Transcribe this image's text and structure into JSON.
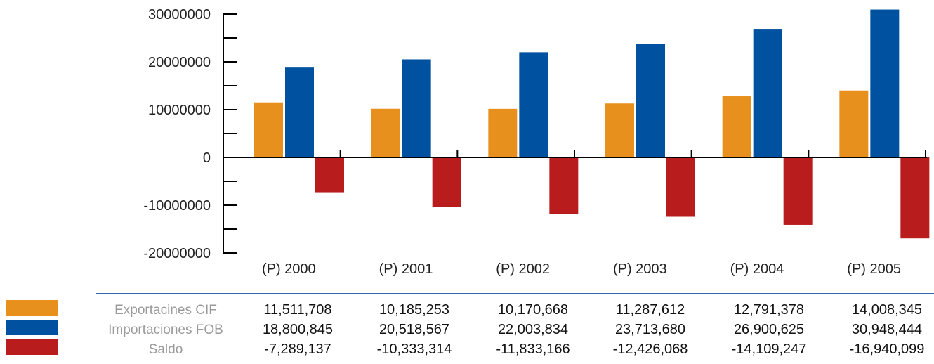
{
  "chart_data": {
    "type": "bar",
    "categories": [
      "(P) 2000",
      "(P) 2001",
      "(P) 2002",
      "(P) 2003",
      "(P) 2004",
      "(P) 2005"
    ],
    "series": [
      {
        "name": "Exportacines CIF",
        "color": "#e8901d",
        "values": [
          11511708,
          10185253,
          10170668,
          11287612,
          12791378,
          14008345
        ],
        "labels": [
          "11,511,708",
          "10,185,253",
          "10,170,668",
          "11,287,612",
          "12,791,378",
          "14,008,345"
        ]
      },
      {
        "name": "Importaciones FOB",
        "color": "#0052a0",
        "values": [
          18800845,
          20518567,
          22003834,
          23713680,
          26900625,
          30948444
        ],
        "labels": [
          "18,800,845",
          "20,518,567",
          "22,003,834",
          "23,713,680",
          "26,900,625",
          "30,948,444"
        ]
      },
      {
        "name": "Saldo",
        "color": "#b81c1c",
        "values": [
          -7289137,
          -10333314,
          -11833166,
          -12426068,
          -14109247,
          -16940099
        ],
        "labels": [
          "-7,289,137",
          "-10,333,314",
          "-11,833,166",
          "-12,426,068",
          "-14,109,247",
          "-16,940,099"
        ]
      }
    ],
    "yticks": [
      30000000,
      20000000,
      10000000,
      0,
      -10000000,
      -20000000
    ],
    "ytick_labels": [
      "30000000",
      "20000000",
      "10000000",
      "0",
      "-10000000",
      "-20000000"
    ],
    "ylim": [
      -20000000,
      30000000
    ],
    "title": "",
    "xlabel": "",
    "ylabel": "",
    "legend": "data-table-below",
    "grid": false,
    "axis_color": "#000000",
    "table_rule_color": "#2d6ab0"
  }
}
